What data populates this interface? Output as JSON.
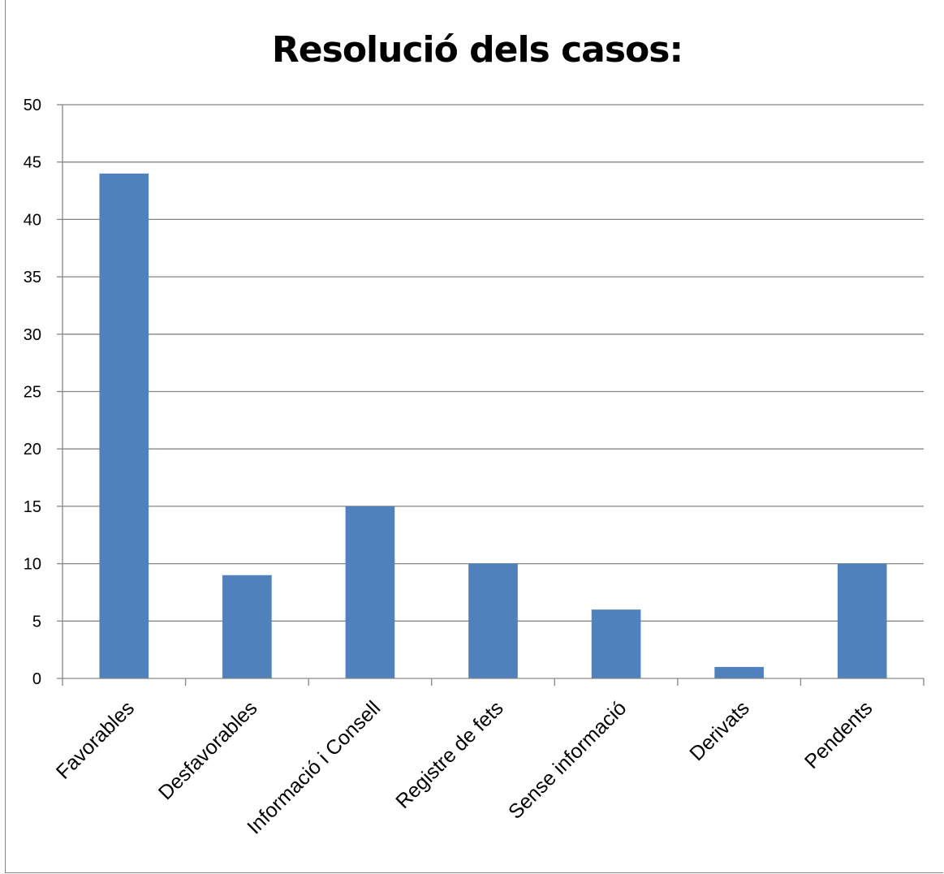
{
  "chart_data": {
    "type": "bar",
    "title": "Resolució dels casos:",
    "xlabel": "",
    "ylabel": "",
    "categories": [
      "Favorables",
      "Desfavorables",
      "Informació i Consell",
      "Registre de fets",
      "Sense informació",
      "Derivats",
      "Pendents"
    ],
    "values": [
      44,
      9,
      15,
      10,
      6,
      1,
      10
    ],
    "ylim": [
      0,
      50
    ],
    "ytick_step": 5,
    "yticks": [
      "0",
      "5",
      "10",
      "15",
      "20",
      "25",
      "30",
      "35",
      "40",
      "45",
      "50"
    ],
    "grid": true,
    "legend": "none",
    "bar_color": "#4F81BD",
    "grid_color": "#868686"
  }
}
